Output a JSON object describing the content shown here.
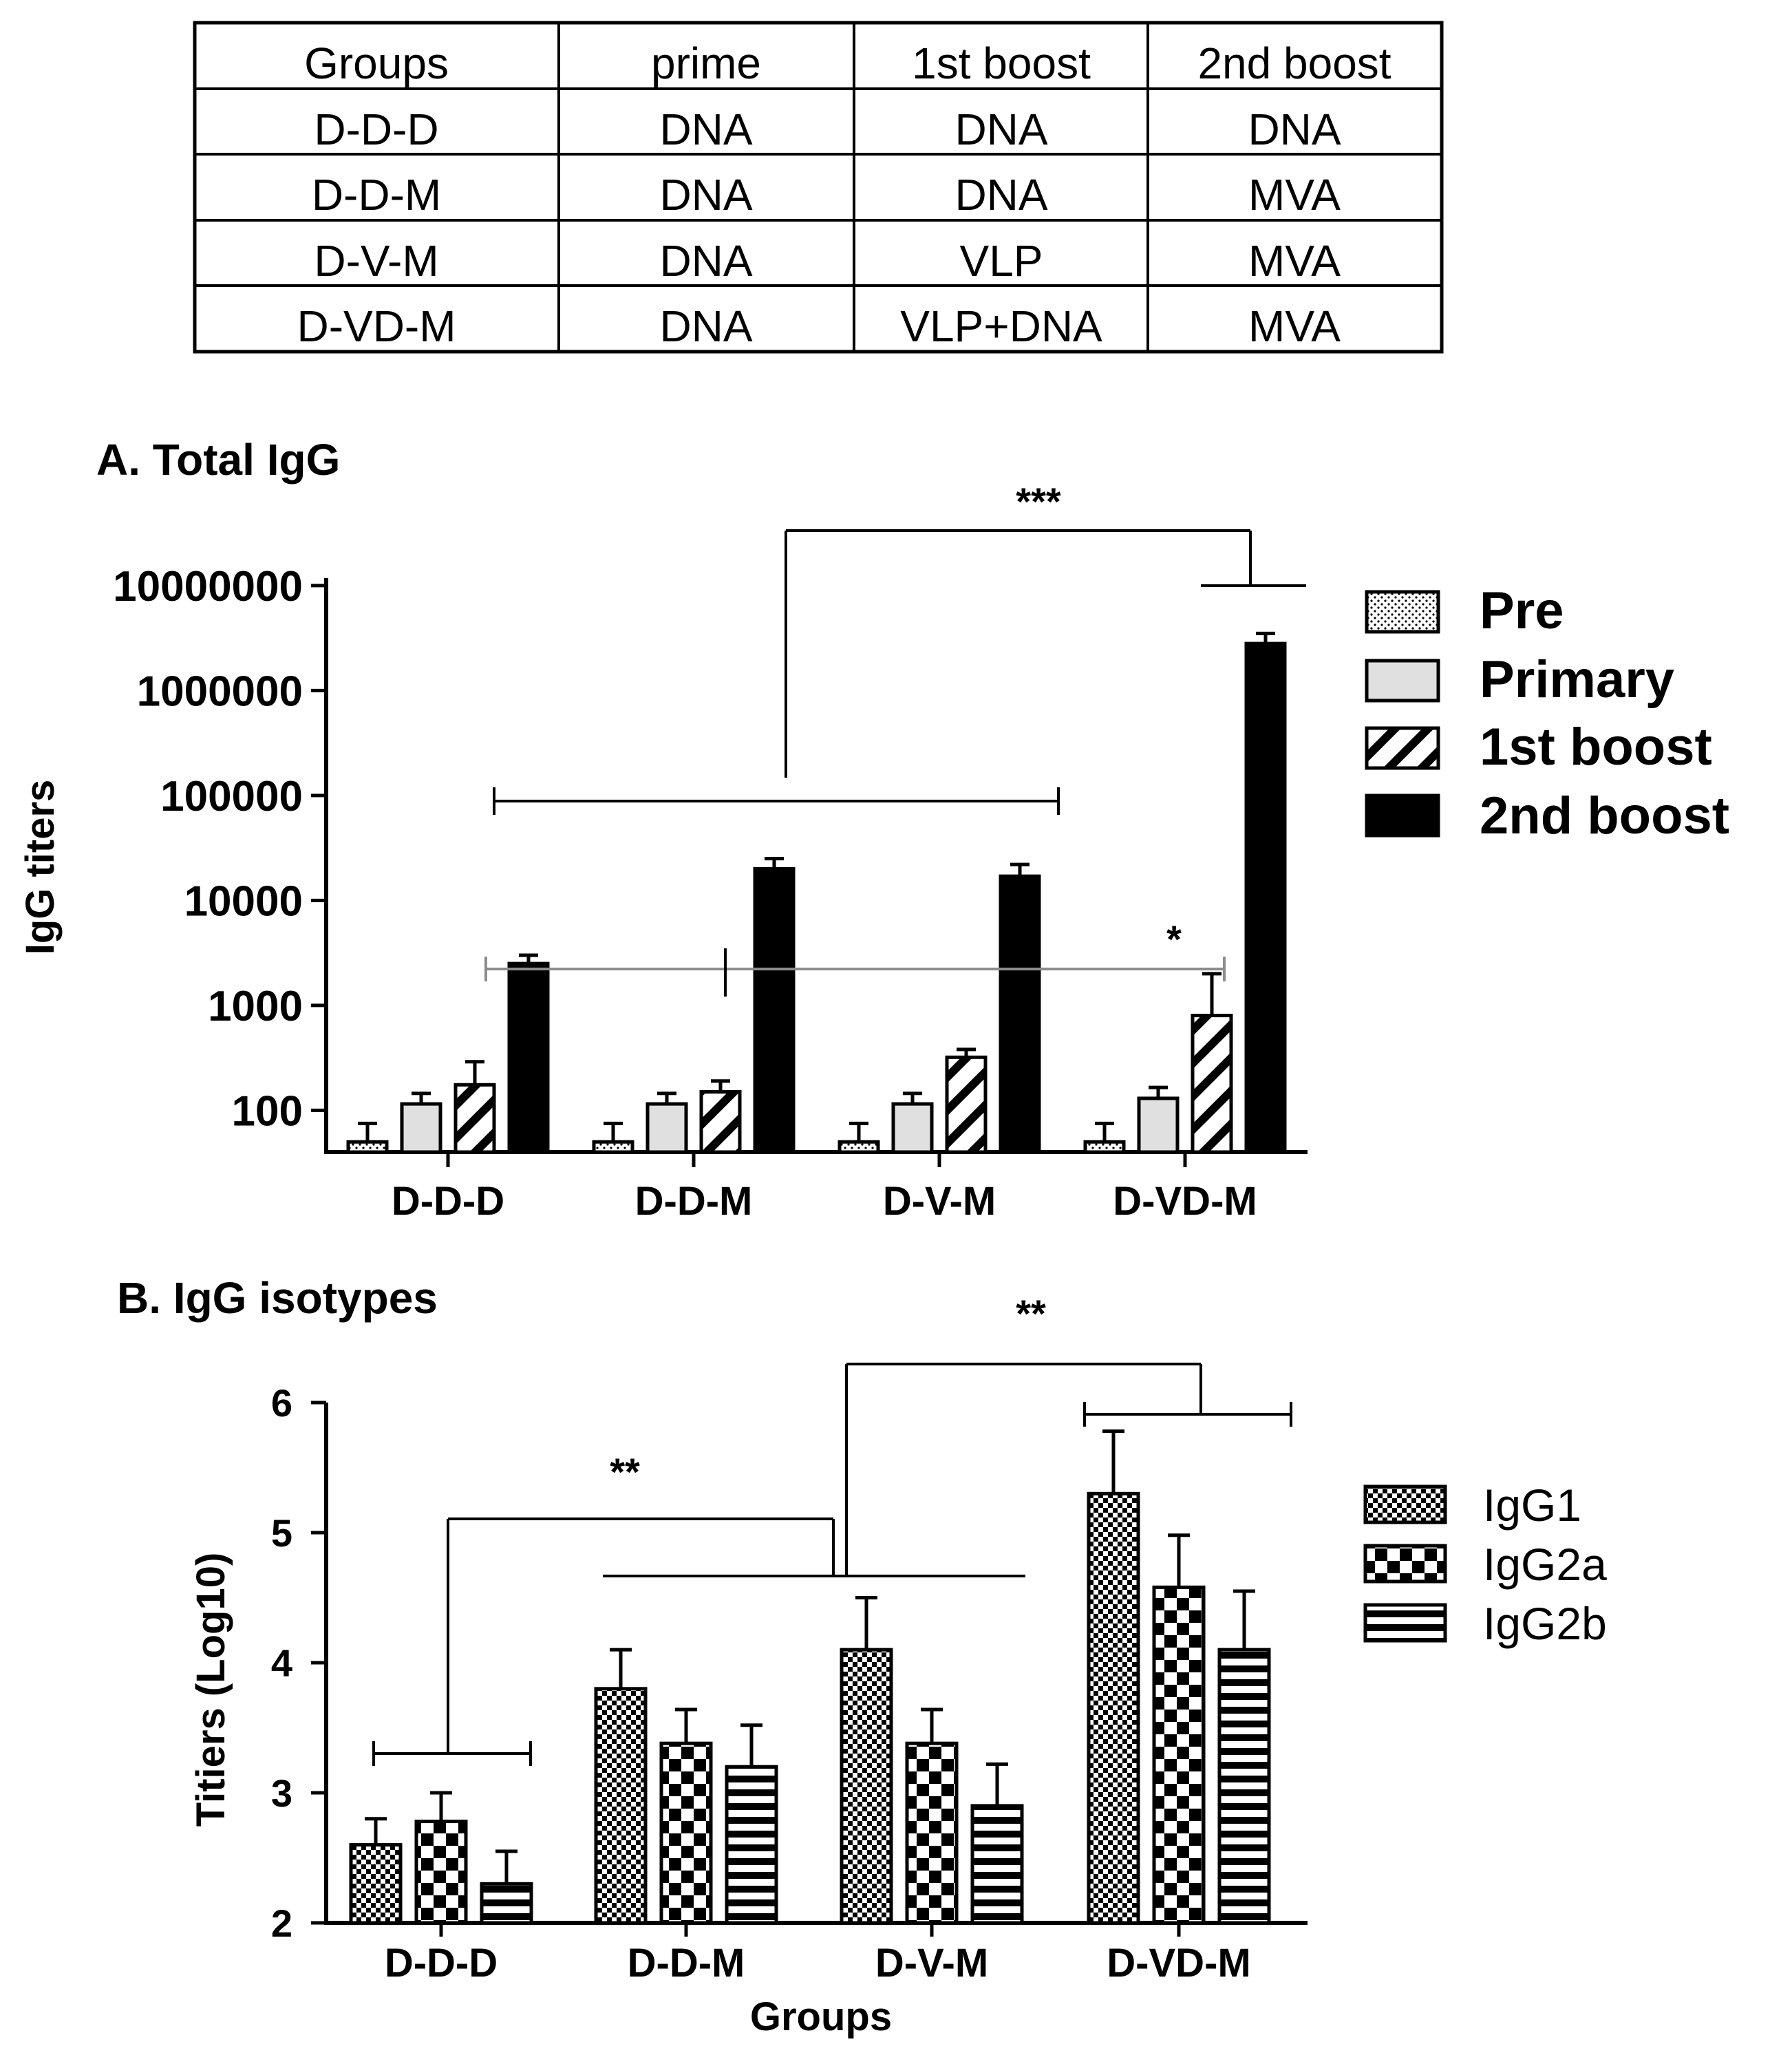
{
  "table": {
    "headers": [
      "Groups",
      "prime",
      "1st boost",
      "2nd boost"
    ],
    "rows": [
      [
        "D-D-D",
        "DNA",
        "DNA",
        "DNA"
      ],
      [
        "D-D-M",
        "DNA",
        "DNA",
        "MVA"
      ],
      [
        "D-V-M",
        "DNA",
        "VLP",
        "MVA"
      ],
      [
        "D-VD-M",
        "DNA",
        "VLP+DNA",
        "MVA"
      ]
    ]
  },
  "chart_data": [
    {
      "type": "bar",
      "title": "A. Total IgG",
      "ylabel": "IgG titers",
      "xlabel": "",
      "yscale": "log",
      "ylim": [
        40,
        10000000
      ],
      "yticks": [
        "100",
        "1000",
        "10000",
        "100000",
        "1000000",
        "10000000"
      ],
      "categories": [
        "D-D-D",
        "D-D-M",
        "D-V-M",
        "D-VD-M"
      ],
      "legend_position": "right",
      "series": [
        {
          "name": "Pre",
          "values": [
            50,
            50,
            50,
            50
          ],
          "errors": [
            75,
            75,
            75,
            75
          ]
        },
        {
          "name": "Primary",
          "values": [
            115,
            115,
            115,
            130
          ],
          "errors": [
            145,
            145,
            145,
            165
          ]
        },
        {
          "name": "1st boost",
          "values": [
            175,
            150,
            320,
            800
          ],
          "errors": [
            290,
            190,
            380,
            2000
          ]
        },
        {
          "name": "2nd boost",
          "values": [
            2500,
            20000,
            17000,
            2800000
          ],
          "errors": [
            3000,
            25000,
            22000,
            3500000
          ]
        }
      ],
      "annotations": [
        "***",
        "*"
      ]
    },
    {
      "type": "bar",
      "title": "B. IgG isotypes",
      "ylabel": "Titiers (Log10)",
      "xlabel": "Groups",
      "ylim": [
        2,
        6
      ],
      "yticks": [
        "2",
        "3",
        "4",
        "5",
        "6"
      ],
      "categories": [
        "D-D-D",
        "D-D-M",
        "D-V-M",
        "D-VD-M"
      ],
      "legend_position": "right",
      "series": [
        {
          "name": "IgG1",
          "values": [
            2.6,
            3.8,
            4.1,
            5.3
          ],
          "errors": [
            2.8,
            4.1,
            4.5,
            5.78
          ]
        },
        {
          "name": "IgG2a",
          "values": [
            2.78,
            3.38,
            3.38,
            4.58
          ],
          "errors": [
            3.0,
            3.64,
            3.64,
            4.98
          ]
        },
        {
          "name": "IgG2b",
          "values": [
            2.3,
            3.2,
            2.9,
            4.1
          ],
          "errors": [
            2.55,
            3.52,
            3.22,
            4.55
          ]
        }
      ],
      "annotations": [
        "**",
        "**"
      ]
    }
  ],
  "colors": {
    "ink": "#000000",
    "gray_bracket": "#8c8c8c",
    "primary_fill": "#e0e0e0"
  }
}
